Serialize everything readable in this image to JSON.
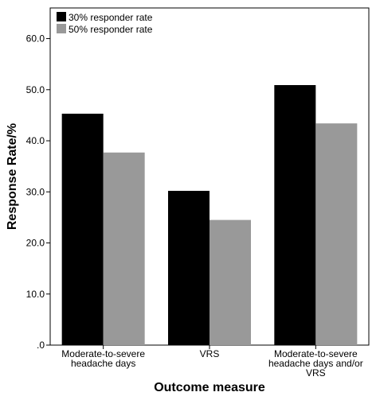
{
  "chart_data": {
    "type": "bar",
    "categories": [
      [
        "Moderate-to-severe",
        "headache days"
      ],
      [
        "VRS"
      ],
      [
        "Moderate-to-severe",
        "headache days and/or",
        "VRS"
      ]
    ],
    "series": [
      {
        "name": "30% responder rate",
        "color": "#000000",
        "values": [
          45.3,
          30.2,
          50.9
        ]
      },
      {
        "name": "50% responder rate",
        "color": "#999999",
        "values": [
          37.7,
          24.5,
          43.4
        ]
      }
    ],
    "yticks": [
      ".0",
      "10.0",
      "20.0",
      "30.0",
      "40.0",
      "50.0",
      "60.0"
    ],
    "ytick_values": [
      0,
      10,
      20,
      30,
      40,
      50,
      60
    ],
    "ylim": [
      0,
      66
    ],
    "xlabel": "Outcome measure",
    "ylabel": "Response Rate/%",
    "grid": false,
    "legend_position": "top-left"
  }
}
